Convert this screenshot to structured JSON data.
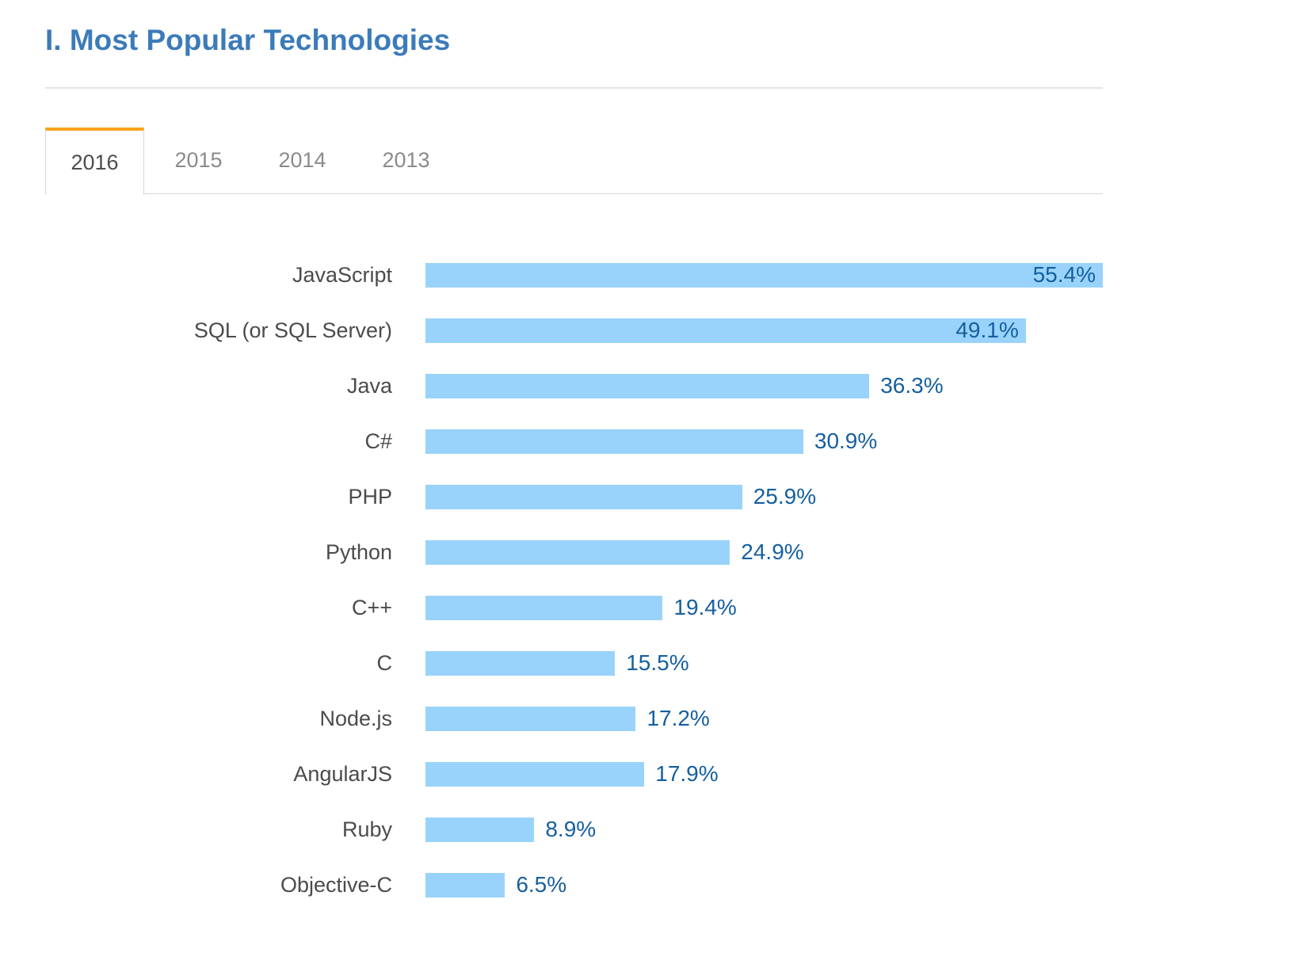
{
  "header": {
    "title": "I. Most Popular Technologies"
  },
  "tabs": {
    "items": [
      {
        "label": "2016",
        "active": true
      },
      {
        "label": "2015",
        "active": false
      },
      {
        "label": "2014",
        "active": false
      },
      {
        "label": "2013",
        "active": false
      }
    ]
  },
  "chart_data": {
    "type": "bar",
    "orientation": "horizontal",
    "title": "",
    "xlabel": "",
    "ylabel": "",
    "categories": [
      "JavaScript",
      "SQL (or SQL Server)",
      "Java",
      "C#",
      "PHP",
      "Python",
      "C++",
      "C",
      "Node.js",
      "AngularJS",
      "Ruby",
      "Objective-C"
    ],
    "values": [
      55.4,
      49.1,
      36.3,
      30.9,
      25.9,
      24.9,
      19.4,
      15.5,
      17.2,
      17.9,
      8.9,
      6.5
    ],
    "value_labels": [
      "55.4%",
      "49.1%",
      "36.3%",
      "30.9%",
      "25.9%",
      "24.9%",
      "19.4%",
      "15.5%",
      "17.2%",
      "17.9%",
      "8.9%",
      "6.5%"
    ],
    "xlim": [
      0,
      55.4
    ],
    "grid": false,
    "legend": false,
    "data_labels": true
  },
  "colors": {
    "title_blue": "#3c7bb9",
    "bar_fill": "#99d3fb",
    "value_label": "#155f9f",
    "category_label": "#4b4b4b",
    "tab_active_text": "#4d4d4d",
    "tab_inactive_text": "#8b8b8b",
    "tab_accent_orange": "#f9a11b",
    "rule_gray": "#e3e3e3",
    "tab_border_gray": "#d8d8d8"
  }
}
